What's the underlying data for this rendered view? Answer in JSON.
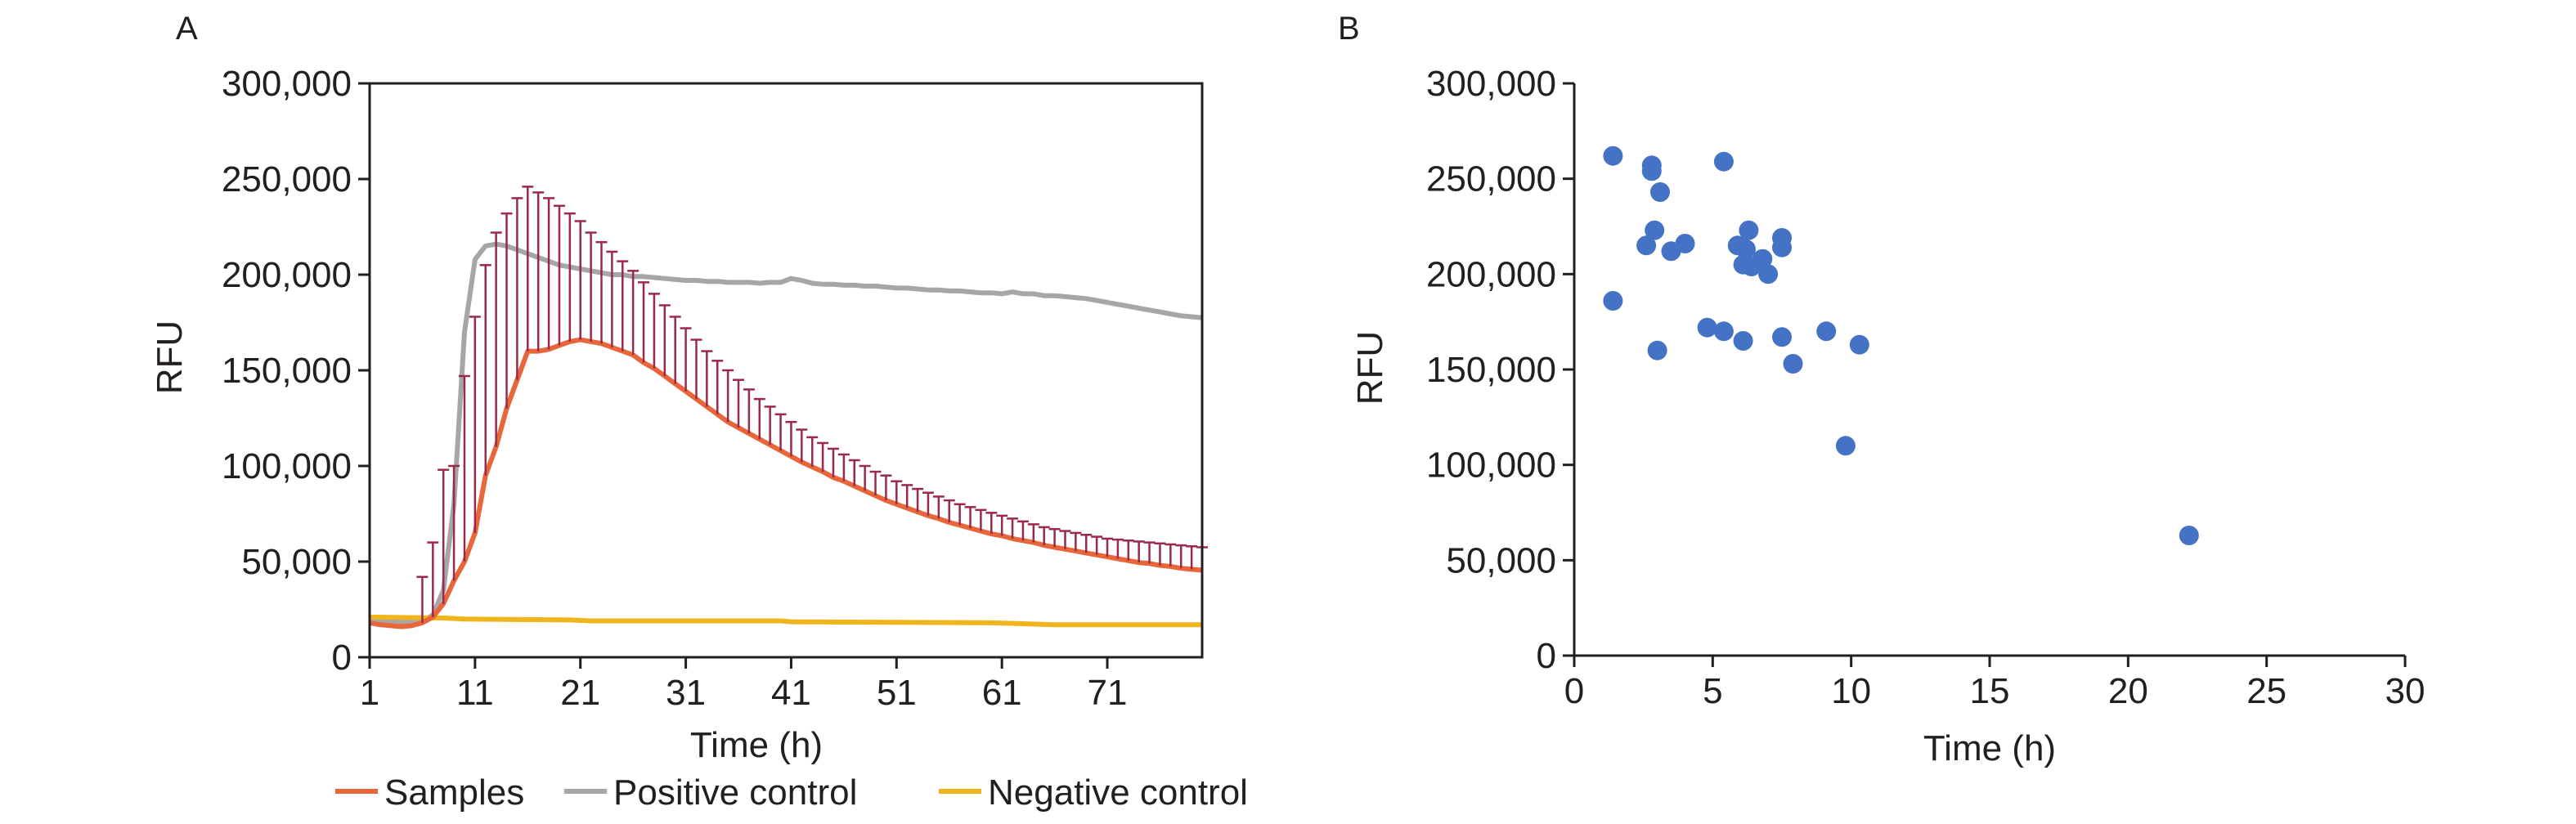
{
  "colors": {
    "samples": "#e8663a",
    "positive": "#a6a6a6",
    "negative": "#f0b41c",
    "errorbar": "#9b2a4a",
    "points": "#4472c4",
    "axis": "#231f20"
  },
  "chart_data": [
    {
      "type": "line",
      "panel_label": "A",
      "xlabel": "Time (h)",
      "ylabel": "RFU",
      "xlim": [
        1,
        80
      ],
      "ylim": [
        0,
        300000
      ],
      "xticks": [
        1,
        11,
        21,
        31,
        41,
        51,
        61,
        71
      ],
      "xtick_labels": [
        "1",
        "11",
        "21",
        "31",
        "41",
        "51",
        "61",
        "71"
      ],
      "yticks": [
        0,
        50000,
        100000,
        150000,
        200000,
        250000,
        300000
      ],
      "ytick_labels": [
        "0",
        "50,000",
        "100,000",
        "150,000",
        "200,000",
        "250,000",
        "300,000"
      ],
      "grid": false,
      "legend_position": "bottom",
      "series": [
        {
          "name": "Samples",
          "color_key": "samples",
          "points": [
            [
              1,
              18000
            ],
            [
              2,
              17000
            ],
            [
              3,
              16500
            ],
            [
              4,
              16000
            ],
            [
              5,
              16500
            ],
            [
              6,
              18000
            ],
            [
              7,
              21000
            ],
            [
              8,
              28000
            ],
            [
              9,
              40000
            ],
            [
              10,
              50000
            ],
            [
              11,
              65000
            ],
            [
              12,
              95000
            ],
            [
              13,
              110000
            ],
            [
              14,
              130000
            ],
            [
              15,
              145000
            ],
            [
              16,
              160000
            ],
            [
              17,
              160000
            ],
            [
              18,
              161000
            ],
            [
              19,
              163000
            ],
            [
              20,
              165000
            ],
            [
              21,
              166000
            ],
            [
              22,
              165000
            ],
            [
              23,
              164000
            ],
            [
              24,
              162000
            ],
            [
              25,
              160000
            ],
            [
              26,
              158000
            ],
            [
              27,
              154000
            ],
            [
              28,
              151000
            ],
            [
              29,
              147000
            ],
            [
              30,
              143000
            ],
            [
              31,
              139000
            ],
            [
              32,
              135000
            ],
            [
              33,
              131000
            ],
            [
              34,
              127000
            ],
            [
              35,
              123000
            ],
            [
              36,
              120000
            ],
            [
              37,
              117000
            ],
            [
              38,
              114000
            ],
            [
              39,
              111000
            ],
            [
              40,
              108000
            ],
            [
              41,
              105000
            ],
            [
              42,
              102000
            ],
            [
              43,
              99500
            ],
            [
              44,
              97000
            ],
            [
              45,
              94000
            ],
            [
              46,
              92000
            ],
            [
              47,
              89500
            ],
            [
              48,
              87000
            ],
            [
              49,
              84500
            ],
            [
              50,
              82000
            ],
            [
              51,
              80000
            ],
            [
              52,
              78000
            ],
            [
              53,
              76000
            ],
            [
              54,
              74000
            ],
            [
              55,
              72500
            ],
            [
              56,
              70500
            ],
            [
              57,
              69000
            ],
            [
              58,
              67500
            ],
            [
              59,
              66000
            ],
            [
              60,
              64500
            ],
            [
              61,
              63500
            ],
            [
              62,
              62000
            ],
            [
              63,
              61000
            ],
            [
              64,
              60000
            ],
            [
              65,
              58500
            ],
            [
              66,
              57500
            ],
            [
              67,
              56500
            ],
            [
              68,
              55500
            ],
            [
              69,
              54500
            ],
            [
              70,
              53500
            ],
            [
              71,
              52500
            ],
            [
              72,
              51500
            ],
            [
              73,
              50500
            ],
            [
              74,
              49500
            ],
            [
              75,
              49000
            ],
            [
              76,
              48000
            ],
            [
              77,
              47500
            ],
            [
              78,
              46500
            ],
            [
              79,
              46000
            ],
            [
              80,
              45500
            ]
          ]
        },
        {
          "name": "Positive control",
          "color_key": "positive",
          "points": [
            [
              1,
              20000
            ],
            [
              2,
              19000
            ],
            [
              3,
              18500
            ],
            [
              4,
              18500
            ],
            [
              5,
              18500
            ],
            [
              6,
              19000
            ],
            [
              7,
              22000
            ],
            [
              8,
              35000
            ],
            [
              9,
              80000
            ],
            [
              10,
              170000
            ],
            [
              11,
              208000
            ],
            [
              12,
              215000
            ],
            [
              13,
              216000
            ],
            [
              14,
              215000
            ],
            [
              15,
              213000
            ],
            [
              16,
              211000
            ],
            [
              17,
              209000
            ],
            [
              18,
              207000
            ],
            [
              19,
              205000
            ],
            [
              20,
              204000
            ],
            [
              21,
              203000
            ],
            [
              22,
              202000
            ],
            [
              23,
              201000
            ],
            [
              24,
              200000
            ],
            [
              25,
              200000
            ],
            [
              26,
              199000
            ],
            [
              27,
              199000
            ],
            [
              28,
              198500
            ],
            [
              29,
              198000
            ],
            [
              30,
              197500
            ],
            [
              31,
              197000
            ],
            [
              32,
              197000
            ],
            [
              33,
              196500
            ],
            [
              34,
              196500
            ],
            [
              35,
              196000
            ],
            [
              36,
              196000
            ],
            [
              37,
              196000
            ],
            [
              38,
              195500
            ],
            [
              39,
              196000
            ],
            [
              40,
              196000
            ],
            [
              41,
              198000
            ],
            [
              42,
              197000
            ],
            [
              43,
              195500
            ],
            [
              44,
              195000
            ],
            [
              45,
              195000
            ],
            [
              46,
              194500
            ],
            [
              47,
              194500
            ],
            [
              48,
              194000
            ],
            [
              49,
              194000
            ],
            [
              50,
              193500
            ],
            [
              51,
              193000
            ],
            [
              52,
              193000
            ],
            [
              53,
              192500
            ],
            [
              54,
              192000
            ],
            [
              55,
              192000
            ],
            [
              56,
              191500
            ],
            [
              57,
              191500
            ],
            [
              58,
              191000
            ],
            [
              59,
              190500
            ],
            [
              60,
              190500
            ],
            [
              61,
              190000
            ],
            [
              62,
              191000
            ],
            [
              63,
              190000
            ],
            [
              64,
              190000
            ],
            [
              65,
              189000
            ],
            [
              66,
              189000
            ],
            [
              67,
              188500
            ],
            [
              68,
              188000
            ],
            [
              69,
              187500
            ],
            [
              70,
              186500
            ],
            [
              71,
              185500
            ],
            [
              72,
              184500
            ],
            [
              73,
              183500
            ],
            [
              74,
              182500
            ],
            [
              75,
              181500
            ],
            [
              76,
              180500
            ],
            [
              77,
              179500
            ],
            [
              78,
              178500
            ],
            [
              79,
              178000
            ],
            [
              80,
              177500
            ]
          ]
        },
        {
          "name": "Negative control",
          "color_key": "negative",
          "points": [
            [
              1,
              21000
            ],
            [
              8,
              20500
            ],
            [
              10,
              20000
            ],
            [
              20,
              19500
            ],
            [
              22,
              19000
            ],
            [
              40,
              19000
            ],
            [
              41,
              18500
            ],
            [
              42,
              18500
            ],
            [
              60,
              18000
            ],
            [
              63,
              17500
            ],
            [
              66,
              17000
            ],
            [
              80,
              17000
            ]
          ]
        }
      ],
      "error_bars": {
        "series": "Samples",
        "x": [
          6,
          7,
          8,
          9,
          10,
          11,
          12,
          13,
          14,
          15,
          16,
          17,
          18,
          19,
          20,
          21,
          22,
          23,
          24,
          25,
          26,
          27,
          28,
          29,
          30,
          31,
          32,
          33,
          34,
          35,
          36,
          37,
          38,
          39,
          40,
          41,
          42,
          43,
          44,
          45,
          46,
          47,
          48,
          49,
          50,
          51,
          52,
          53,
          54,
          55,
          56,
          57,
          58,
          59,
          60,
          61,
          62,
          63,
          64,
          65,
          66,
          67,
          68,
          69,
          70,
          71,
          72,
          73,
          74,
          75,
          76,
          77,
          78,
          79,
          80
        ],
        "upper": [
          42000,
          60000,
          98000,
          100000,
          147000,
          178000,
          205000,
          222000,
          232000,
          240000,
          246000,
          243000,
          240000,
          236000,
          232000,
          228000,
          222000,
          217000,
          212000,
          207000,
          202000,
          196000,
          190000,
          184000,
          178000,
          172000,
          166000,
          160000,
          155000,
          150000,
          145000,
          140000,
          135000,
          131000,
          127000,
          123000,
          119000,
          115000,
          112000,
          109000,
          106000,
          103000,
          100000,
          97000,
          95000,
          92000,
          90000,
          88000,
          86000,
          84000,
          82000,
          80000,
          78500,
          77000,
          75500,
          74000,
          72500,
          71000,
          69500,
          68000,
          67000,
          66000,
          65000,
          64000,
          63000,
          62000,
          61500,
          61000,
          60500,
          60000,
          59500,
          59000,
          58500,
          58000,
          57500
        ]
      }
    },
    {
      "type": "scatter",
      "panel_label": "B",
      "xlabel": "Time (h)",
      "ylabel": "RFU",
      "xlim": [
        0,
        30
      ],
      "ylim": [
        0,
        300000
      ],
      "xticks": [
        0,
        5,
        10,
        15,
        20,
        25,
        30
      ],
      "xtick_labels": [
        "0",
        "5",
        "10",
        "15",
        "20",
        "25",
        "30"
      ],
      "yticks": [
        0,
        50000,
        100000,
        150000,
        200000,
        250000,
        300000
      ],
      "ytick_labels": [
        "0",
        "50,000",
        "100,000",
        "150,000",
        "200,000",
        "250,000",
        "300,000"
      ],
      "grid": false,
      "color_key": "points",
      "points": [
        [
          1.4,
          262000
        ],
        [
          1.4,
          186000
        ],
        [
          2.6,
          215000
        ],
        [
          2.8,
          257000
        ],
        [
          2.8,
          254000
        ],
        [
          2.9,
          223000
        ],
        [
          3.0,
          160000
        ],
        [
          3.1,
          243000
        ],
        [
          3.5,
          212000
        ],
        [
          4.0,
          216000
        ],
        [
          4.8,
          172000
        ],
        [
          5.4,
          170000
        ],
        [
          5.4,
          259000
        ],
        [
          5.9,
          215000
        ],
        [
          6.1,
          165000
        ],
        [
          6.1,
          205000
        ],
        [
          6.2,
          213000
        ],
        [
          6.3,
          223000
        ],
        [
          6.4,
          204000
        ],
        [
          6.8,
          208000
        ],
        [
          7.0,
          200000
        ],
        [
          7.5,
          219000
        ],
        [
          7.5,
          214000
        ],
        [
          7.5,
          167000
        ],
        [
          7.9,
          153000
        ],
        [
          9.1,
          170000
        ],
        [
          9.8,
          110000
        ],
        [
          10.3,
          163000
        ],
        [
          22.2,
          63000
        ]
      ]
    }
  ]
}
